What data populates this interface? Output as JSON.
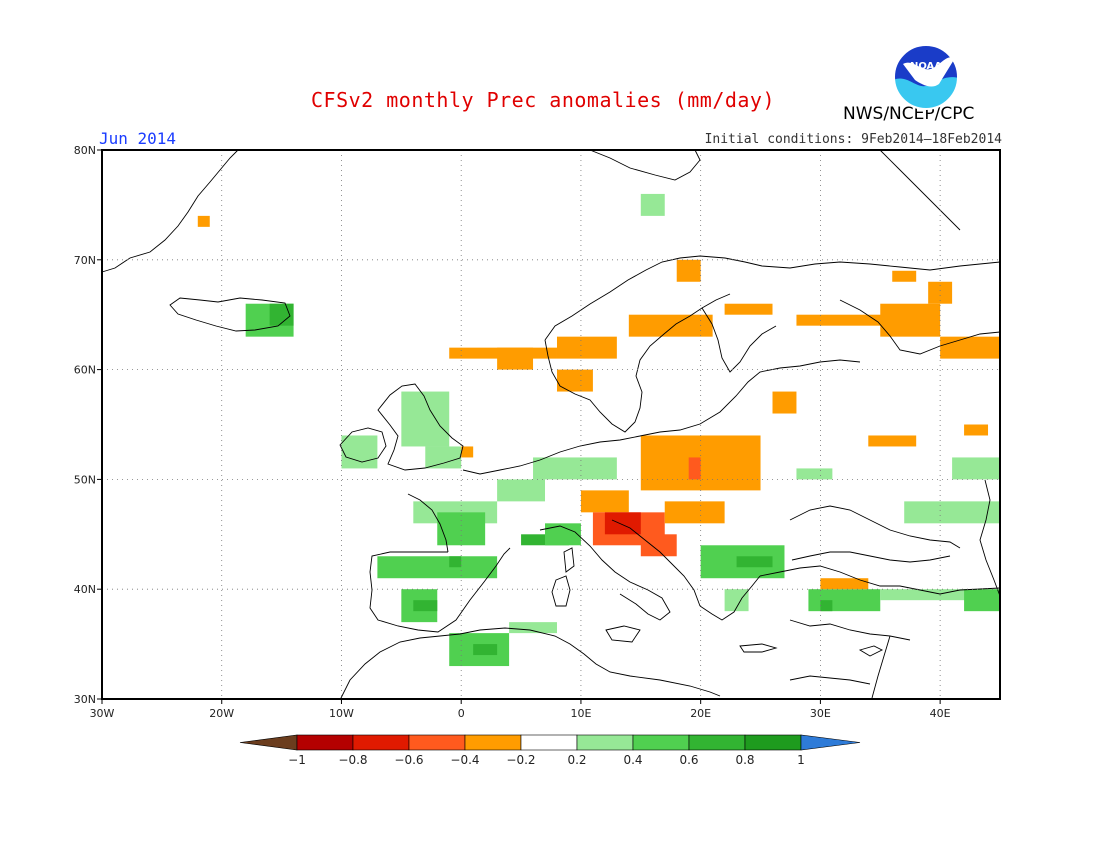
{
  "header": {
    "title": "CFSv2 monthly Prec anomalies (mm/day)",
    "agency": "NWS/NCEP/CPC",
    "logo_text": "NOAA",
    "month": "Jun 2014",
    "initial_conditions": "Initial conditions: 9Feb2014–18Feb2014"
  },
  "axes": {
    "lat_labels": [
      "80N",
      "70N",
      "60N",
      "50N",
      "40N",
      "30N"
    ],
    "lon_labels": [
      "30W",
      "20W",
      "10W",
      "0",
      "10E",
      "20E",
      "30E",
      "40E"
    ],
    "lon_range": [
      -30,
      45
    ],
    "lat_range": [
      30,
      80
    ],
    "grid": "dotted"
  },
  "colorbar": {
    "labels": [
      "−1",
      "−0.8",
      "−0.6",
      "−0.4",
      "−0.2",
      "0.2",
      "0.4",
      "0.6",
      "0.8",
      "1"
    ],
    "colors": [
      "#6b3d1e",
      "#b40000",
      "#e01a00",
      "#ff5a1e",
      "#ff9c00",
      "#ffffff",
      "#96e896",
      "#50d050",
      "#32b432",
      "#1e9b1e",
      "#2e7bd8"
    ]
  },
  "chart_data": {
    "type": "heatmap",
    "title": "CFSv2 monthly Prec anomalies (mm/day)",
    "units": "mm/day",
    "lon_range": [
      -30,
      45
    ],
    "lat_range": [
      30,
      80
    ],
    "cell_deg": 1,
    "regions": [
      {
        "lon": [
          -18,
          -14
        ],
        "lat": [
          63,
          66
        ],
        "value": 0.4
      },
      {
        "lon": [
          -16,
          -14
        ],
        "lat": [
          64,
          66
        ],
        "value": 0.7
      },
      {
        "lon": [
          -22,
          -21
        ],
        "lat": [
          73,
          74
        ],
        "value": -0.3
      },
      {
        "lon": [
          15,
          17
        ],
        "lat": [
          74,
          76
        ],
        "value": 0.3
      },
      {
        "lon": [
          -10,
          -7
        ],
        "lat": [
          51,
          54
        ],
        "value": 0.3
      },
      {
        "lon": [
          -5,
          -1
        ],
        "lat": [
          53,
          58
        ],
        "value": 0.3
      },
      {
        "lon": [
          -3,
          0
        ],
        "lat": [
          51,
          53
        ],
        "value": 0.3
      },
      {
        "lon": [
          0,
          1
        ],
        "lat": [
          52,
          53
        ],
        "value": -0.3
      },
      {
        "lon": [
          -4,
          3
        ],
        "lat": [
          46,
          48
        ],
        "value": 0.3
      },
      {
        "lon": [
          -2,
          2
        ],
        "lat": [
          44,
          47
        ],
        "value": 0.4
      },
      {
        "lon": [
          3,
          7
        ],
        "lat": [
          48,
          50
        ],
        "value": 0.3
      },
      {
        "lon": [
          6,
          13
        ],
        "lat": [
          50,
          52
        ],
        "value": 0.3
      },
      {
        "lon": [
          5,
          9
        ],
        "lat": [
          44,
          45
        ],
        "value": 0.6
      },
      {
        "lon": [
          -7,
          3
        ],
        "lat": [
          41,
          43
        ],
        "value": 0.4
      },
      {
        "lon": [
          -5,
          -2
        ],
        "lat": [
          37,
          40
        ],
        "value": 0.5
      },
      {
        "lon": [
          -4,
          -2
        ],
        "lat": [
          38,
          39
        ],
        "value": 0.7
      },
      {
        "lon": [
          -1,
          0
        ],
        "lat": [
          42,
          43
        ],
        "value": 0.6
      },
      {
        "lon": [
          -1,
          4
        ],
        "lat": [
          33,
          36
        ],
        "value": 0.4
      },
      {
        "lon": [
          1,
          3
        ],
        "lat": [
          34,
          35
        ],
        "value": 0.7
      },
      {
        "lon": [
          4,
          8
        ],
        "lat": [
          36,
          37
        ],
        "value": 0.3
      },
      {
        "lon": [
          7,
          10
        ],
        "lat": [
          44,
          46
        ],
        "value": 0.4
      },
      {
        "lon": [
          10,
          14
        ],
        "lat": [
          47,
          49
        ],
        "value": -0.3
      },
      {
        "lon": [
          15,
          25
        ],
        "lat": [
          49,
          54
        ],
        "value": -0.3
      },
      {
        "lon": [
          19,
          20
        ],
        "lat": [
          50,
          52
        ],
        "value": -0.6
      },
      {
        "lon": [
          11,
          17
        ],
        "lat": [
          44,
          47
        ],
        "value": -0.5
      },
      {
        "lon": [
          12,
          15
        ],
        "lat": [
          45,
          47
        ],
        "value": -0.8
      },
      {
        "lon": [
          15,
          18
        ],
        "lat": [
          43,
          45
        ],
        "value": -0.5
      },
      {
        "lon": [
          17,
          22
        ],
        "lat": [
          46,
          48
        ],
        "value": -0.3
      },
      {
        "lon": [
          20,
          27
        ],
        "lat": [
          41,
          44
        ],
        "value": 0.4
      },
      {
        "lon": [
          23,
          26
        ],
        "lat": [
          42,
          43
        ],
        "value": 0.6
      },
      {
        "lon": [
          22,
          24
        ],
        "lat": [
          38,
          40
        ],
        "value": 0.3
      },
      {
        "lon": [
          29,
          35
        ],
        "lat": [
          38,
          40
        ],
        "value": 0.4
      },
      {
        "lon": [
          30,
          31
        ],
        "lat": [
          38,
          39
        ],
        "value": 0.7
      },
      {
        "lon": [
          30,
          34
        ],
        "lat": [
          40,
          41
        ],
        "value": -0.3
      },
      {
        "lon": [
          35,
          45
        ],
        "lat": [
          39,
          40
        ],
        "value": 0.3
      },
      {
        "lon": [
          42,
          45
        ],
        "lat": [
          38,
          40
        ],
        "value": 0.5
      },
      {
        "lon": [
          37,
          45
        ],
        "lat": [
          46,
          48
        ],
        "value": 0.3
      },
      {
        "lon": [
          41,
          45
        ],
        "lat": [
          50,
          52
        ],
        "value": 0.3
      },
      {
        "lon": [
          28,
          31
        ],
        "lat": [
          50,
          51
        ],
        "value": 0.3
      },
      {
        "lon": [
          -1,
          8
        ],
        "lat": [
          61,
          62
        ],
        "value": -0.3
      },
      {
        "lon": [
          3,
          6
        ],
        "lat": [
          60,
          62
        ],
        "value": -0.3
      },
      {
        "lon": [
          8,
          13
        ],
        "lat": [
          61,
          63
        ],
        "value": -0.3
      },
      {
        "lon": [
          14,
          21
        ],
        "lat": [
          63,
          65
        ],
        "value": -0.3
      },
      {
        "lon": [
          18,
          20
        ],
        "lat": [
          68,
          70
        ],
        "value": -0.3
      },
      {
        "lon": [
          22,
          26
        ],
        "lat": [
          65,
          66
        ],
        "value": -0.3
      },
      {
        "lon": [
          28,
          38
        ],
        "lat": [
          64,
          65
        ],
        "value": -0.3
      },
      {
        "lon": [
          35,
          40
        ],
        "lat": [
          63,
          66
        ],
        "value": -0.3
      },
      {
        "lon": [
          40,
          45
        ],
        "lat": [
          61,
          63
        ],
        "value": -0.3
      },
      {
        "lon": [
          39,
          41
        ],
        "lat": [
          66,
          68
        ],
        "value": -0.3
      },
      {
        "lon": [
          36,
          38
        ],
        "lat": [
          68,
          69
        ],
        "value": -0.3
      },
      {
        "lon": [
          8,
          11
        ],
        "lat": [
          58,
          60
        ],
        "value": -0.3
      },
      {
        "lon": [
          26,
          28
        ],
        "lat": [
          56,
          58
        ],
        "value": -0.3
      },
      {
        "lon": [
          34,
          38
        ],
        "lat": [
          53,
          54
        ],
        "value": -0.3
      },
      {
        "lon": [
          42,
          44
        ],
        "lat": [
          54,
          55
        ],
        "value": -0.3
      }
    ]
  }
}
